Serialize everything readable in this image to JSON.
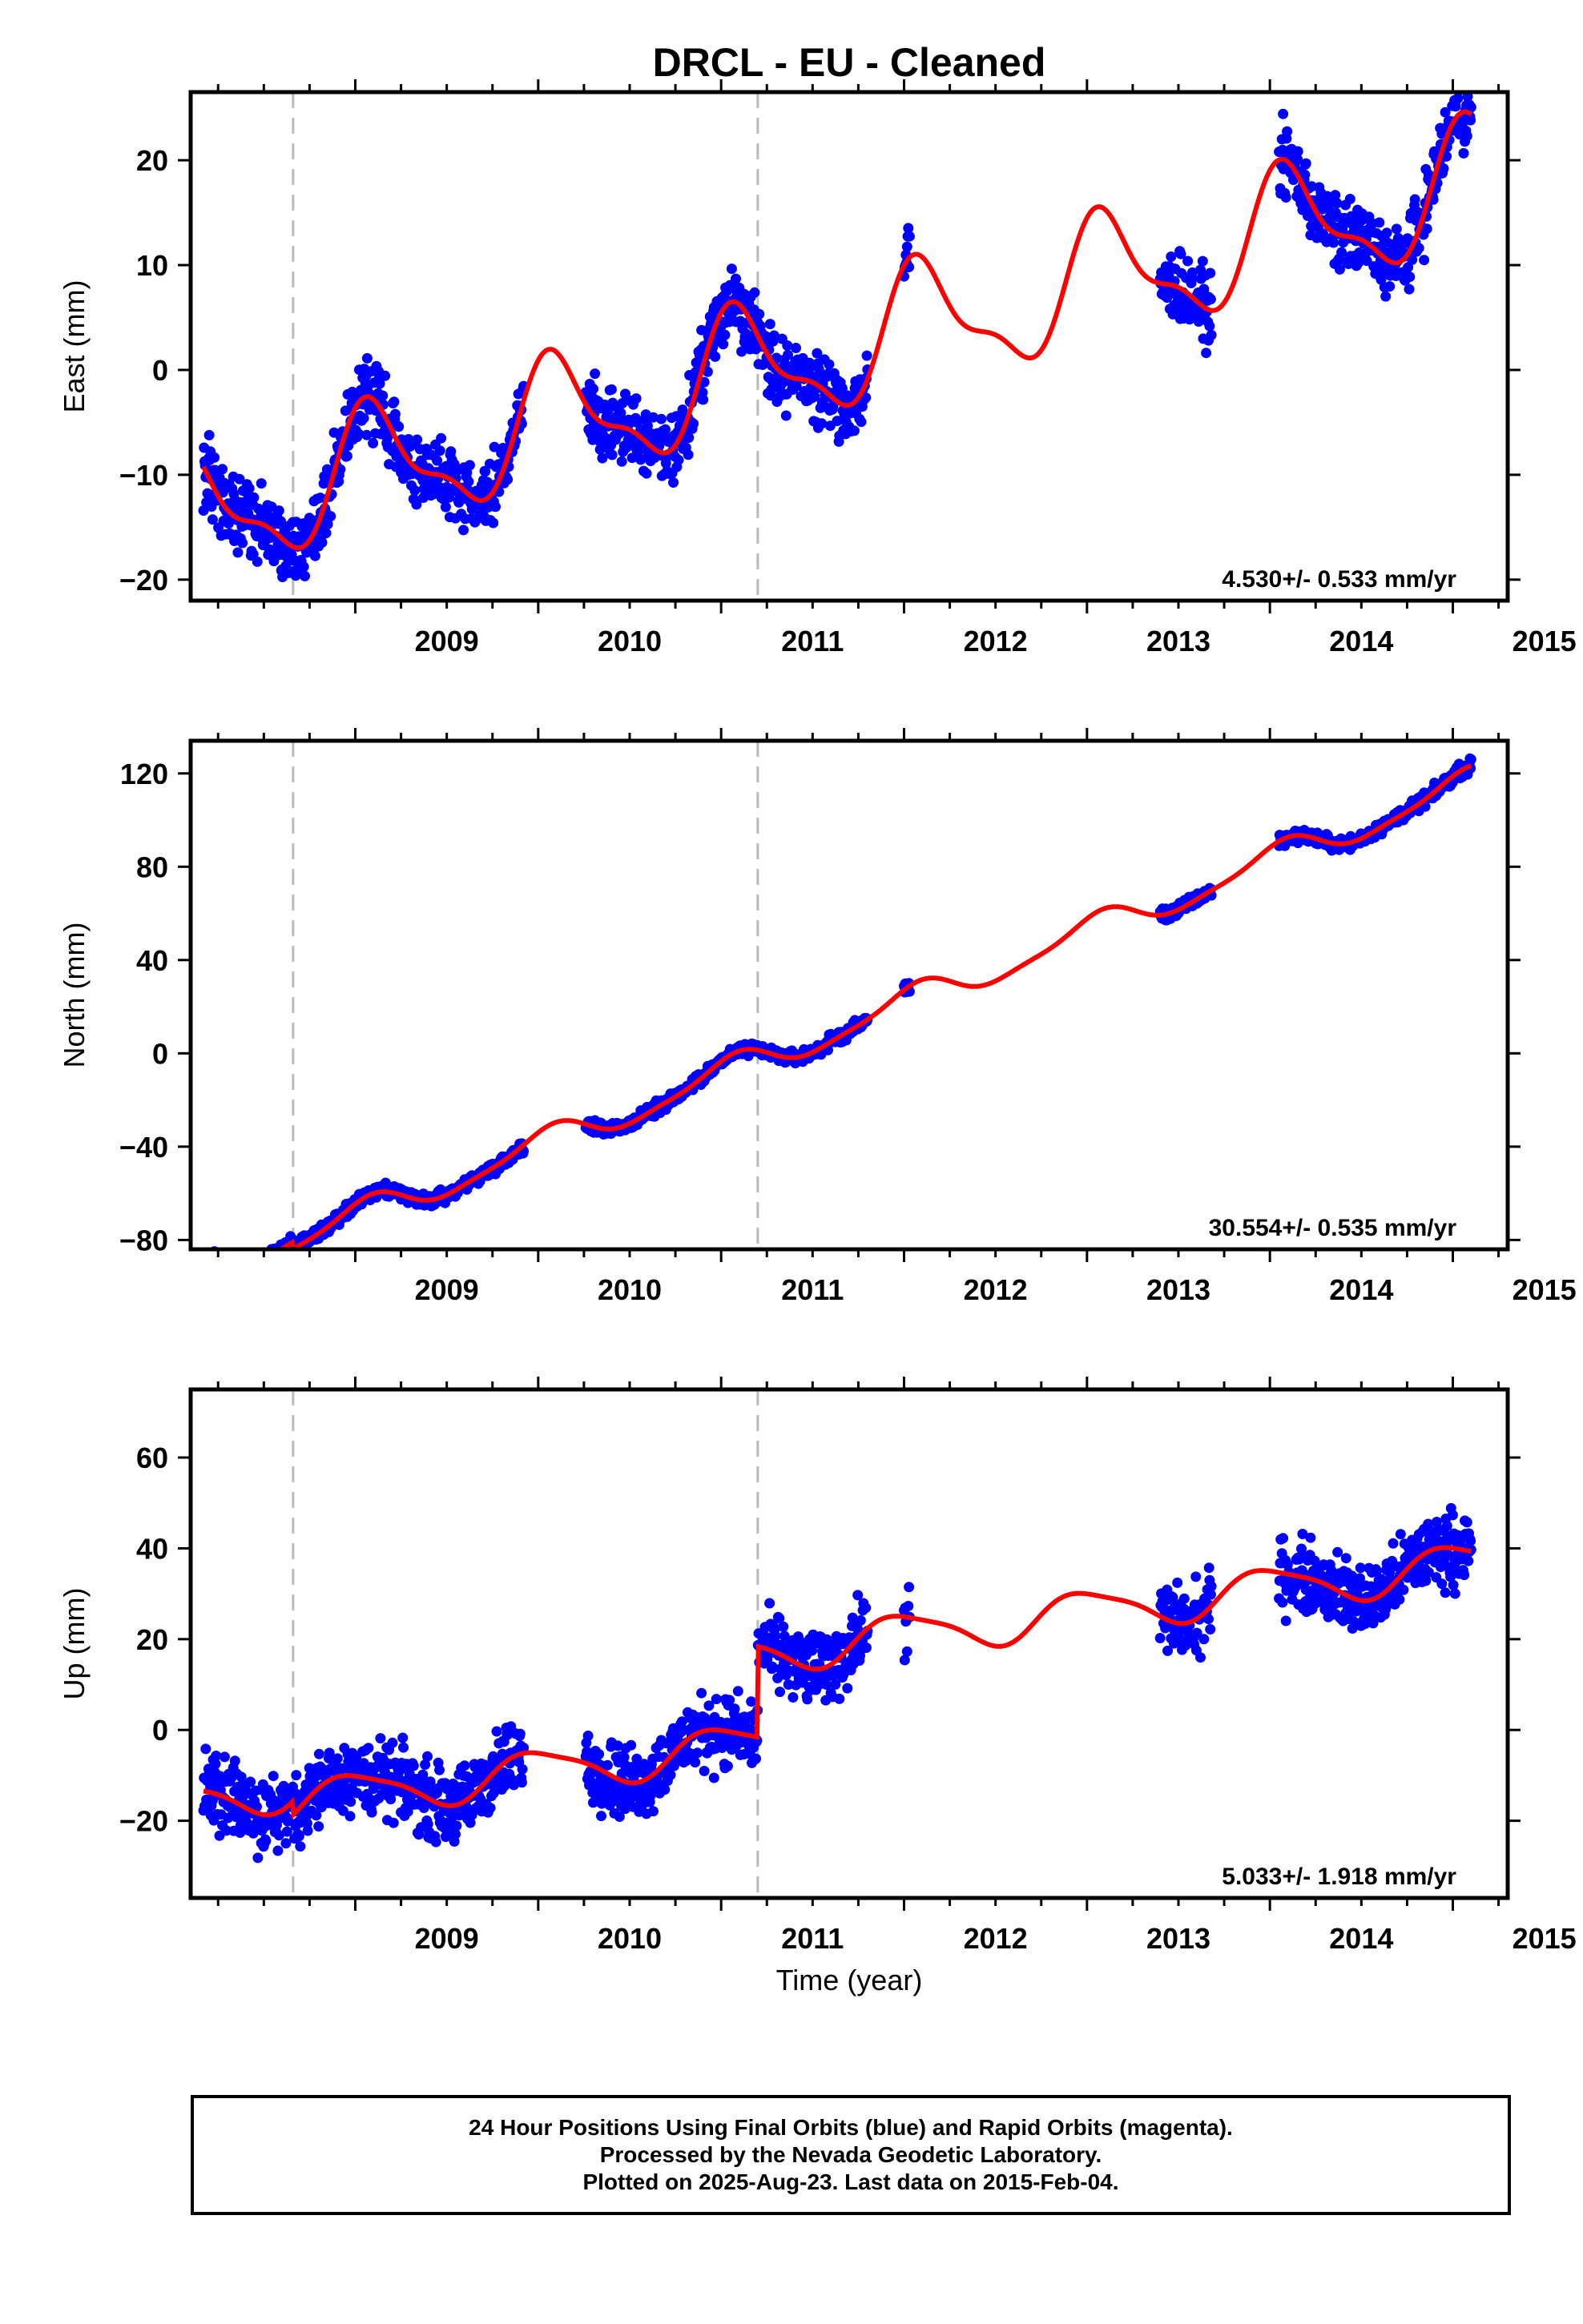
{
  "chart_data": {
    "title": "DRCL  - EU - Cleaned",
    "xlabel": "Time (year)",
    "xlim": [
      2008.1,
      2015.3
    ],
    "x_ticks": [
      "2009",
      "2010",
      "2011",
      "2012",
      "2013",
      "2014",
      "2015"
    ],
    "x_tick_values": [
      2009,
      2010,
      2011,
      2012,
      2013,
      2014,
      2015
    ],
    "event_lines": [
      2008.66,
      2011.2
    ],
    "colors": {
      "final": "#0000ff",
      "rapid": "#ff00ff",
      "model": "#ff0000",
      "event_line": "#bbbbbb"
    },
    "panels": [
      {
        "type": "scatter",
        "ylabel": "East (mm)",
        "ylim": [
          -22,
          26.5
        ],
        "y_ticks": [
          -20,
          -10,
          0,
          10,
          20
        ],
        "rate": "4.530+/- 0.533 mm/yr",
        "rate_value": 4.53,
        "offsets": [
          0,
          0
        ],
        "season": {
          "amp1": 5.5,
          "phase1": 0.15,
          "amp2": 2.0,
          "phase2": 0.1
        },
        "data_spans": [
          [
            2008.17,
            2009.92
          ],
          [
            2010.26,
            2011.8
          ],
          [
            2012.0,
            2012.03
          ],
          [
            2013.4,
            2013.68
          ],
          [
            2014.05,
            2015.1
          ]
        ],
        "noise": 2.3
      },
      {
        "type": "scatter",
        "ylabel": "North (mm)",
        "ylim": [
          -84,
          134
        ],
        "y_ticks": [
          -80,
          -40,
          0,
          40,
          80,
          120
        ],
        "rate": "30.554+/- 0.535 mm/yr",
        "rate_value": 30.554,
        "offsets": [
          -3,
          0
        ],
        "season": {
          "amp1": 6.0,
          "phase1": 0.2,
          "amp2": 1.5,
          "phase2": 0.0
        },
        "data_spans": [
          [
            2008.17,
            2009.92
          ],
          [
            2010.26,
            2011.8
          ],
          [
            2012.0,
            2012.03
          ],
          [
            2013.4,
            2013.68
          ],
          [
            2014.05,
            2015.1
          ]
        ],
        "noise": 2.0
      },
      {
        "type": "scatter",
        "ylabel": "Up (mm)",
        "ylim": [
          -37,
          75
        ],
        "y_ticks": [
          -20,
          0,
          20,
          40,
          60
        ],
        "rate": "5.033+/- 1.918 mm/yr",
        "rate_value": 5.033,
        "offsets": [
          -3,
          20
        ],
        "season": {
          "amp1": 4.5,
          "phase1": 0.25,
          "amp2": 1.0,
          "phase2": 0.3
        },
        "data_spans": [
          [
            2008.17,
            2009.92
          ],
          [
            2010.26,
            2011.8
          ],
          [
            2012.0,
            2012.03
          ],
          [
            2013.4,
            2013.68
          ],
          [
            2014.05,
            2015.1
          ]
        ],
        "noise": 5.5
      }
    ]
  },
  "footer": {
    "line1": "24 Hour Positions Using Final Orbits (blue) and Rapid Orbits (magenta).",
    "line2": "Processed by the Nevada Geodetic Laboratory.",
    "line3": "Plotted on 2025-Aug-23. Last data on 2015-Feb-04."
  }
}
